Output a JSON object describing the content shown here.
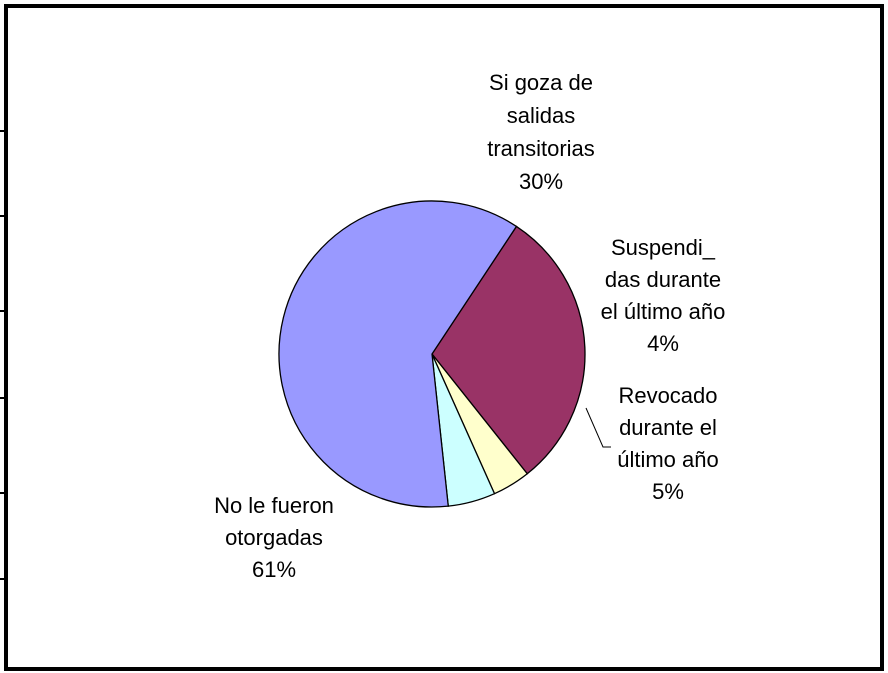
{
  "chart_data": {
    "type": "pie",
    "title": "",
    "slices": [
      {
        "label": "Si goza de salidas transitorias",
        "label_lines": [
          "Si goza de",
          "salidas",
          "transitorias",
          "30%"
        ],
        "value": 30,
        "percent_label": "30%",
        "color": "#993366"
      },
      {
        "label": "Suspendi_ das durante el último año",
        "label_lines": [
          "Suspendi_",
          "das durante",
          "el último año",
          "4%"
        ],
        "value": 4,
        "percent_label": "4%",
        "color": "#FFFFCC"
      },
      {
        "label": "Revocado durante el último año",
        "label_lines": [
          "Revocado",
          "durante el",
          "último año",
          "5%"
        ],
        "value": 5,
        "percent_label": "5%",
        "color": "#CCFFFF"
      },
      {
        "label": "No le fueron otorgadas",
        "label_lines": [
          "No le fueron",
          "otorgadas",
          "61%"
        ],
        "value": 61,
        "percent_label": "61%",
        "color": "#9999FF"
      }
    ],
    "legend": "none",
    "border_color": "#000000",
    "slice_edge_color": "#000000"
  }
}
